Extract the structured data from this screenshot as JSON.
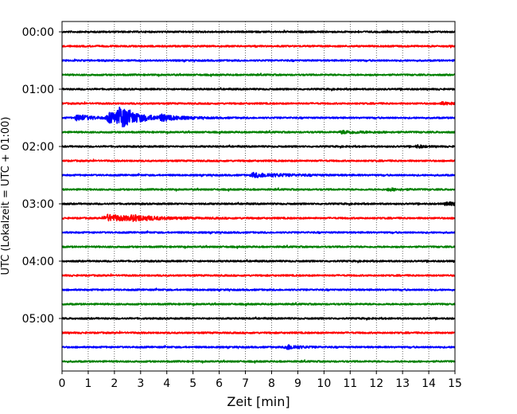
{
  "chart_data": {
    "type": "line",
    "xlabel": "Zeit  [min]",
    "ylabel": "UTC (Lokalzeit = UTC + 01:00)",
    "xlim": [
      0,
      15
    ],
    "x_ticks": [
      "0",
      "1",
      "2",
      "3",
      "4",
      "5",
      "6",
      "7",
      "8",
      "9",
      "10",
      "11",
      "12",
      "13",
      "14",
      "15"
    ],
    "y_ticks": [
      "00:00",
      "01:00",
      "02:00",
      "03:00",
      "04:00",
      "05:00"
    ],
    "grid": "vertical dotted at each minute",
    "trace_interval_minutes": 15,
    "trace_color_cycle": [
      "#000000",
      "#ff0000",
      "#0000ff",
      "#008000"
    ],
    "series": [
      {
        "start": "00:00",
        "events": []
      },
      {
        "start": "00:15",
        "events": []
      },
      {
        "start": "00:30",
        "events": []
      },
      {
        "start": "00:45",
        "events": []
      },
      {
        "start": "01:00",
        "events": []
      },
      {
        "start": "01:15",
        "events": [
          {
            "t": 14.5,
            "amp": 1.3,
            "dur": 0.5
          }
        ]
      },
      {
        "start": "01:30",
        "events": [
          {
            "t": 0.6,
            "amp": 4.0,
            "dur": 0.5
          },
          {
            "t": 1.8,
            "amp": 6.0,
            "dur": 0.8
          },
          {
            "t": 2.2,
            "amp": 11.0,
            "dur": 0.6
          },
          {
            "t": 3.8,
            "amp": 3.0,
            "dur": 0.6
          }
        ]
      },
      {
        "start": "01:45",
        "events": [
          {
            "t": 10.7,
            "amp": 1.6,
            "dur": 0.8
          }
        ]
      },
      {
        "start": "02:00",
        "events": [
          {
            "t": 13.6,
            "amp": 1.8,
            "dur": 0.2
          }
        ]
      },
      {
        "start": "02:15",
        "events": []
      },
      {
        "start": "02:30",
        "events": [
          {
            "t": 7.3,
            "amp": 2.5,
            "dur": 1.2
          }
        ]
      },
      {
        "start": "02:45",
        "events": [
          {
            "t": 12.5,
            "amp": 1.4,
            "dur": 0.4
          }
        ]
      },
      {
        "start": "03:00",
        "events": [
          {
            "t": 14.7,
            "amp": 2.0,
            "dur": 0.5
          }
        ]
      },
      {
        "start": "03:15",
        "events": [
          {
            "t": 1.7,
            "amp": 4.0,
            "dur": 1.2
          },
          {
            "t": 2.7,
            "amp": 2.0,
            "dur": 0.8
          }
        ]
      },
      {
        "start": "03:30",
        "events": []
      },
      {
        "start": "03:45",
        "events": []
      },
      {
        "start": "04:00",
        "events": []
      },
      {
        "start": "04:15",
        "events": []
      },
      {
        "start": "04:30",
        "events": []
      },
      {
        "start": "04:45",
        "events": []
      },
      {
        "start": "05:00",
        "events": []
      },
      {
        "start": "05:15",
        "events": []
      },
      {
        "start": "05:30",
        "events": [
          {
            "t": 8.6,
            "amp": 3.0,
            "dur": 0.4
          }
        ]
      },
      {
        "start": "05:45",
        "events": []
      }
    ]
  }
}
